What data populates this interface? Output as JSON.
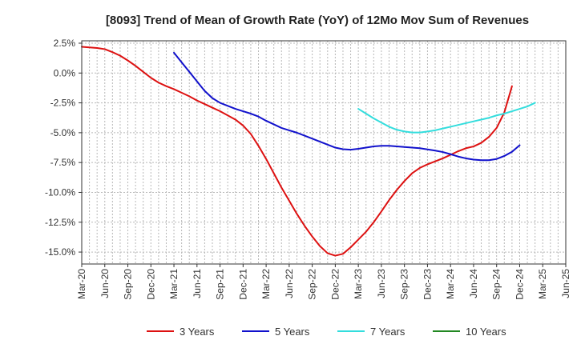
{
  "chart_data": {
    "type": "line",
    "title": "[8093]  Trend of Mean of Growth Rate (YoY) of 12Mo Mov Sum of Revenues",
    "xlabel": "",
    "ylabel": "",
    "ylim": [
      -16,
      2.7
    ],
    "yticks": [
      2.5,
      0,
      -2.5,
      -5,
      -7.5,
      -10,
      -12.5,
      -15
    ],
    "ytick_labels": [
      "2.5%",
      "0.0%",
      "-2.5%",
      "-5.0%",
      "-7.5%",
      "-10.0%",
      "-12.5%",
      "-15.0%"
    ],
    "x_start": "Mar-20",
    "x_end": "Jun-25",
    "xtick_labels": [
      "Mar-20",
      "Jun-20",
      "Sep-20",
      "Dec-20",
      "Mar-21",
      "Jun-21",
      "Sep-21",
      "Dec-21",
      "Mar-22",
      "Jun-22",
      "Sep-22",
      "Dec-22",
      "Mar-23",
      "Jun-23",
      "Sep-23",
      "Dec-23",
      "Mar-24",
      "Jun-24",
      "Sep-24",
      "Dec-24",
      "Mar-25",
      "Jun-25"
    ],
    "grid": true,
    "legend_position": "bottom",
    "series": [
      {
        "name": "3 Years",
        "color": "#dd1111",
        "start_month": 0,
        "values": [
          2.2,
          2.15,
          2.1,
          2.0,
          1.75,
          1.45,
          1.05,
          0.6,
          0.1,
          -0.4,
          -0.8,
          -1.1,
          -1.35,
          -1.65,
          -1.95,
          -2.3,
          -2.6,
          -2.9,
          -3.2,
          -3.55,
          -3.9,
          -4.4,
          -5.1,
          -6.1,
          -7.2,
          -8.4,
          -9.6,
          -10.7,
          -11.8,
          -12.8,
          -13.7,
          -14.5,
          -15.1,
          -15.3,
          -15.15,
          -14.6,
          -13.95,
          -13.3,
          -12.5,
          -11.6,
          -10.65,
          -9.8,
          -9.05,
          -8.4,
          -7.95,
          -7.65,
          -7.4,
          -7.15,
          -6.85,
          -6.55,
          -6.3,
          -6.15,
          -5.85,
          -5.35,
          -4.6,
          -3.3,
          -1.1
        ]
      },
      {
        "name": "5 Years",
        "color": "#1111cc",
        "start_month": 12,
        "values": [
          1.7,
          0.9,
          0.1,
          -0.7,
          -1.5,
          -2.1,
          -2.5,
          -2.75,
          -3.0,
          -3.2,
          -3.4,
          -3.65,
          -4.0,
          -4.3,
          -4.6,
          -4.8,
          -5.0,
          -5.25,
          -5.5,
          -5.75,
          -6.0,
          -6.25,
          -6.38,
          -6.42,
          -6.35,
          -6.25,
          -6.15,
          -6.1,
          -6.1,
          -6.15,
          -6.2,
          -6.25,
          -6.3,
          -6.4,
          -6.5,
          -6.62,
          -6.8,
          -7.0,
          -7.15,
          -7.25,
          -7.3,
          -7.3,
          -7.2,
          -6.95,
          -6.6,
          -6.05
        ]
      },
      {
        "name": "7 Years",
        "color": "#33dddd",
        "start_month": 36,
        "values": [
          -3.0,
          -3.4,
          -3.8,
          -4.15,
          -4.5,
          -4.75,
          -4.9,
          -4.98,
          -4.98,
          -4.9,
          -4.8,
          -4.65,
          -4.5,
          -4.35,
          -4.2,
          -4.05,
          -3.9,
          -3.75,
          -3.55,
          -3.4,
          -3.2,
          -3.0,
          -2.8,
          -2.5
        ]
      },
      {
        "name": "10 Years",
        "color": "#228822",
        "start_month": 0,
        "values": []
      }
    ]
  }
}
